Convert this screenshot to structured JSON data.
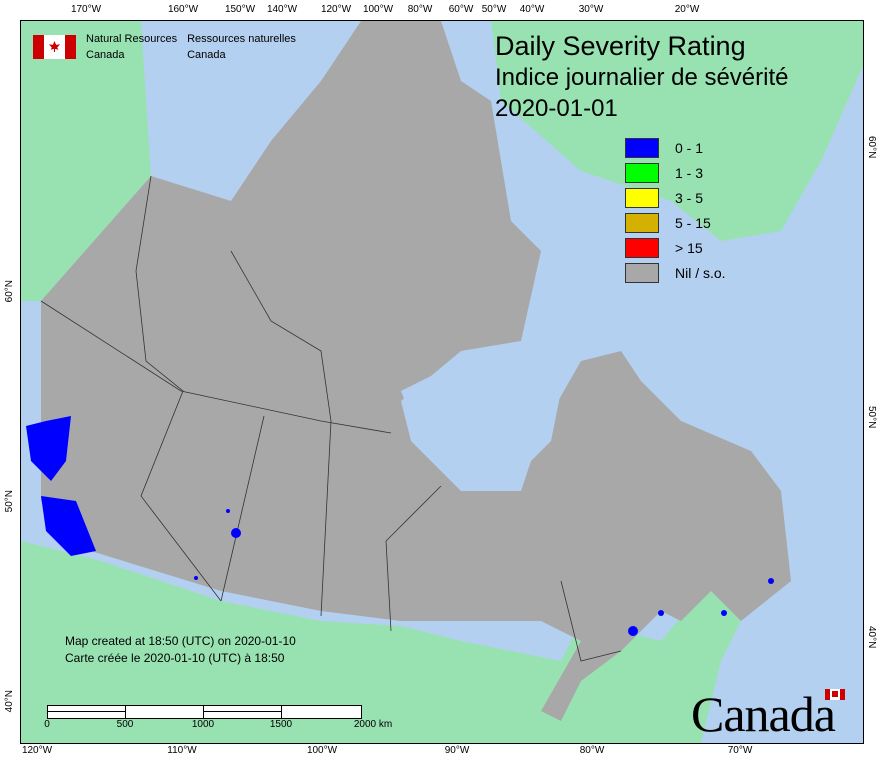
{
  "axes": {
    "top": [
      "170°W",
      "160°W",
      "150°W",
      "140°W",
      "120°W",
      "100°W",
      "80°W",
      "60°W",
      "50°W",
      "40°W",
      "30°W",
      "20°W"
    ],
    "bottom": [
      "120°W",
      "110°W",
      "100°W",
      "90°W",
      "80°W",
      "70°W"
    ],
    "left": [
      "60°N",
      "50°N",
      "40°N"
    ],
    "right": [
      "60°N",
      "50°N",
      "40°N"
    ]
  },
  "agency": {
    "en_line1": "Natural Resources",
    "en_line2": "Canada",
    "fr_line1": "Ressources naturelles",
    "fr_line2": "Canada"
  },
  "title": {
    "en": "Daily Severity Rating",
    "fr": "Indice journalier de sévérité",
    "date": "2020-01-01"
  },
  "legend": [
    {
      "label": "0 - 1",
      "color": "#0000ff"
    },
    {
      "label": "1 - 3",
      "color": "#00ff00"
    },
    {
      "label": "3 - 5",
      "color": "#ffff00"
    },
    {
      "label": "5 - 15",
      "color": "#d4b000"
    },
    {
      "label": "> 15",
      "color": "#ff0000"
    },
    {
      "label": "Nil / s.o.",
      "color": "#a8a8a8"
    }
  ],
  "created": {
    "en": "Map created at 18:50 (UTC) on 2020-01-10",
    "fr": "Carte créée le 2020-01-10 (UTC) à 18:50"
  },
  "scale": {
    "labels": [
      "0",
      "500",
      "1000",
      "1500",
      "2000 km"
    ]
  },
  "wordmark": "Canada",
  "colors": {
    "water": "#b3d0f0",
    "land_canada": "#a8a8a8",
    "land_other": "#98e2b2",
    "rating_0_1": "#0000ff"
  }
}
